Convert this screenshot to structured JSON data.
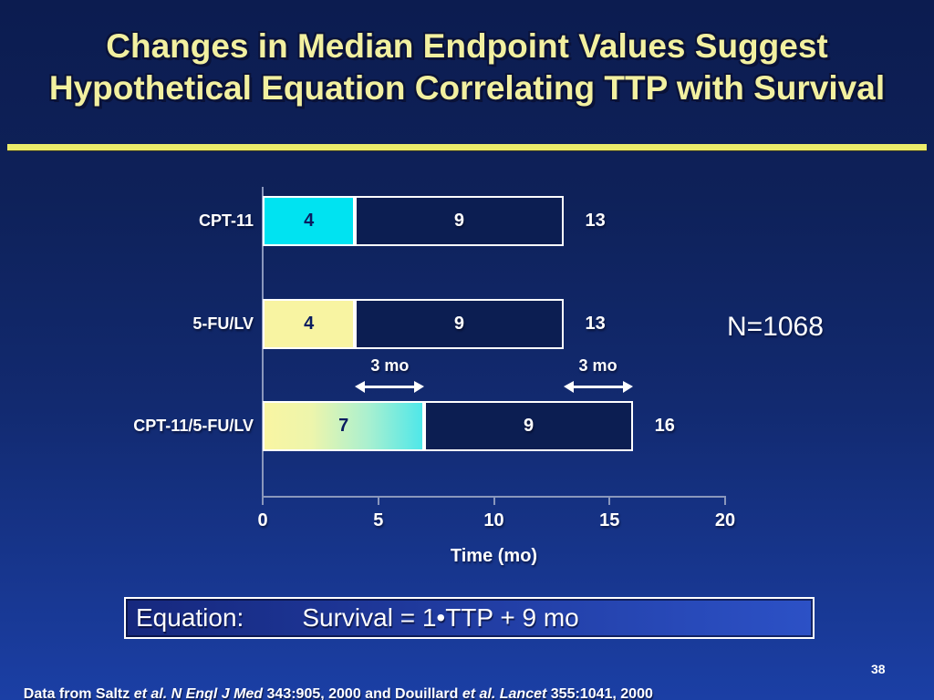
{
  "slide": {
    "title_line1": "Changes in Median Endpoint Values Suggest",
    "title_line2": "Hypothetical Equation Correlating TTP with Survival",
    "annotation_n": "N=1068",
    "equation": {
      "label": "Equation:",
      "formula": "Survival = 1•TTP + 9 mo"
    },
    "footer_segments": [
      {
        "text": "Data from Saltz ",
        "italic": false
      },
      {
        "text": "et al. N Engl J Med ",
        "italic": true
      },
      {
        "text": "343:905, 2000 and Douillard ",
        "italic": false
      },
      {
        "text": "et al. Lancet ",
        "italic": true
      },
      {
        "text": "355:1041, 2000",
        "italic": false
      }
    ],
    "page_number": "38"
  },
  "chart_data": {
    "type": "bar",
    "orientation": "horizontal",
    "stacked": true,
    "xlabel": "Time (mo)",
    "xlim": [
      0,
      20
    ],
    "x_ticks": [
      0,
      5,
      10,
      15,
      20
    ],
    "grid": false,
    "rows": [
      {
        "label": "CPT-11",
        "seg1": 4,
        "seg2": 9,
        "total": 13,
        "fill": "cyan"
      },
      {
        "label": "5-FU/LV",
        "seg1": 4,
        "seg2": 9,
        "total": 13,
        "fill": "yellow"
      },
      {
        "label": "CPT-11/5-FU/LV",
        "seg1": 7,
        "seg2": 9,
        "total": 16,
        "fill": "gradient"
      }
    ],
    "annotations": [
      {
        "text": "3 mo",
        "from_value": 4,
        "to_value": 7
      },
      {
        "text": "3 mo",
        "from_value": 13,
        "to_value": 16
      }
    ],
    "colors": {
      "background_top": "#0c1c50",
      "background_bottom": "#1b3fa5",
      "title_text": "#f2f0a0",
      "separator_line": "#ecec6a",
      "cpt11_segment": "#00e3f1",
      "fulv_segment": "#f8f4a2",
      "combo_segment_gradient": [
        "#f9f5a2",
        "#4fe7e9"
      ],
      "survival_segment": "#0c1e52",
      "bar_border": "#ffffff",
      "segment1_value_text": "#0a1c60",
      "axis": "#8a97bc"
    }
  }
}
